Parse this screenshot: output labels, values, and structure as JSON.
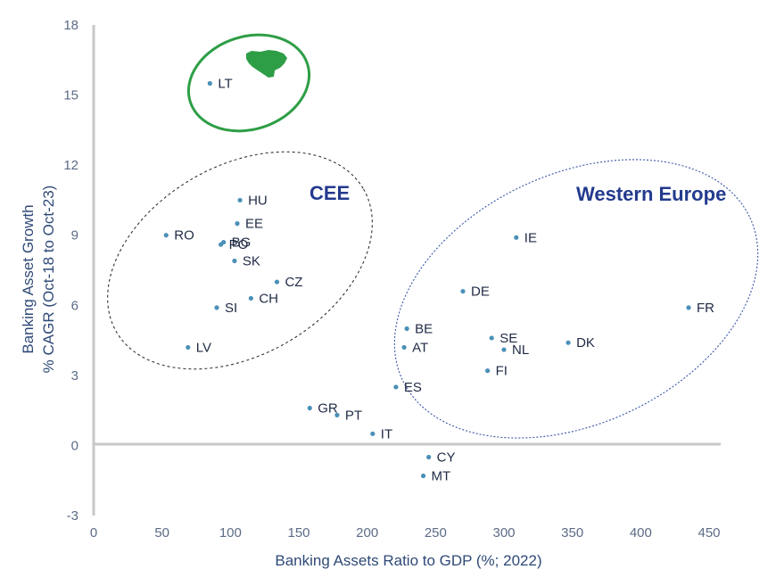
{
  "chart_data": {
    "type": "scatter",
    "xlabel": "Banking Assets Ratio to GDP (%; 2022)",
    "ylabel": [
      "Banking Asset Growth",
      "% CAGR (Oct-18 to Oct-23)"
    ],
    "xlim": [
      0,
      450
    ],
    "ylim": [
      -3,
      18
    ],
    "xticks": [
      "0",
      "50",
      "100",
      "150",
      "200",
      "250",
      "300",
      "350",
      "400",
      "450"
    ],
    "yticks": [
      "18",
      "15",
      "12",
      "9",
      "6",
      "3",
      "0",
      "-3"
    ],
    "grid": false,
    "points": [
      {
        "label": "LT",
        "x": 85,
        "y": 15.5
      },
      {
        "label": "HU",
        "x": 107,
        "y": 10.5
      },
      {
        "label": "EE",
        "x": 105,
        "y": 9.5
      },
      {
        "label": "RO",
        "x": 53,
        "y": 9.0
      },
      {
        "label": "BG",
        "x": 95,
        "y": 8.7
      },
      {
        "label": "PO",
        "x": 93,
        "y": 8.6
      },
      {
        "label": "SK",
        "x": 103,
        "y": 7.9
      },
      {
        "label": "CZ",
        "x": 134,
        "y": 7.0
      },
      {
        "label": "CH",
        "x": 115,
        "y": 6.3
      },
      {
        "label": "SI",
        "x": 90,
        "y": 5.9
      },
      {
        "label": "LV",
        "x": 69,
        "y": 4.2
      },
      {
        "label": "IE",
        "x": 309,
        "y": 8.9
      },
      {
        "label": "DE",
        "x": 270,
        "y": 6.6
      },
      {
        "label": "FR",
        "x": 435,
        "y": 5.9
      },
      {
        "label": "BE",
        "x": 229,
        "y": 5.0
      },
      {
        "label": "SE",
        "x": 291,
        "y": 4.6
      },
      {
        "label": "DK",
        "x": 347,
        "y": 4.4
      },
      {
        "label": "AT",
        "x": 227,
        "y": 4.2
      },
      {
        "label": "NL",
        "x": 300,
        "y": 4.1
      },
      {
        "label": "FI",
        "x": 288,
        "y": 3.2
      },
      {
        "label": "ES",
        "x": 221,
        "y": 2.5
      },
      {
        "label": "GR",
        "x": 158,
        "y": 1.6
      },
      {
        "label": "PT",
        "x": 178,
        "y": 1.3
      },
      {
        "label": "IT",
        "x": 204,
        "y": 0.5
      },
      {
        "label": "CY",
        "x": 245,
        "y": -0.5
      },
      {
        "label": "MT",
        "x": 241,
        "y": -1.3
      }
    ],
    "groups": [
      {
        "label": "CEE",
        "color": "#233a8e"
      },
      {
        "label": "Western Europe",
        "color": "#233a8e"
      }
    ],
    "colors": {
      "point": "#4a90b8",
      "axis": "#c8c8c8",
      "highlight": "#2e9e46",
      "dashed_outline": "#333333",
      "dotted_outline": "#3a55a8"
    }
  }
}
